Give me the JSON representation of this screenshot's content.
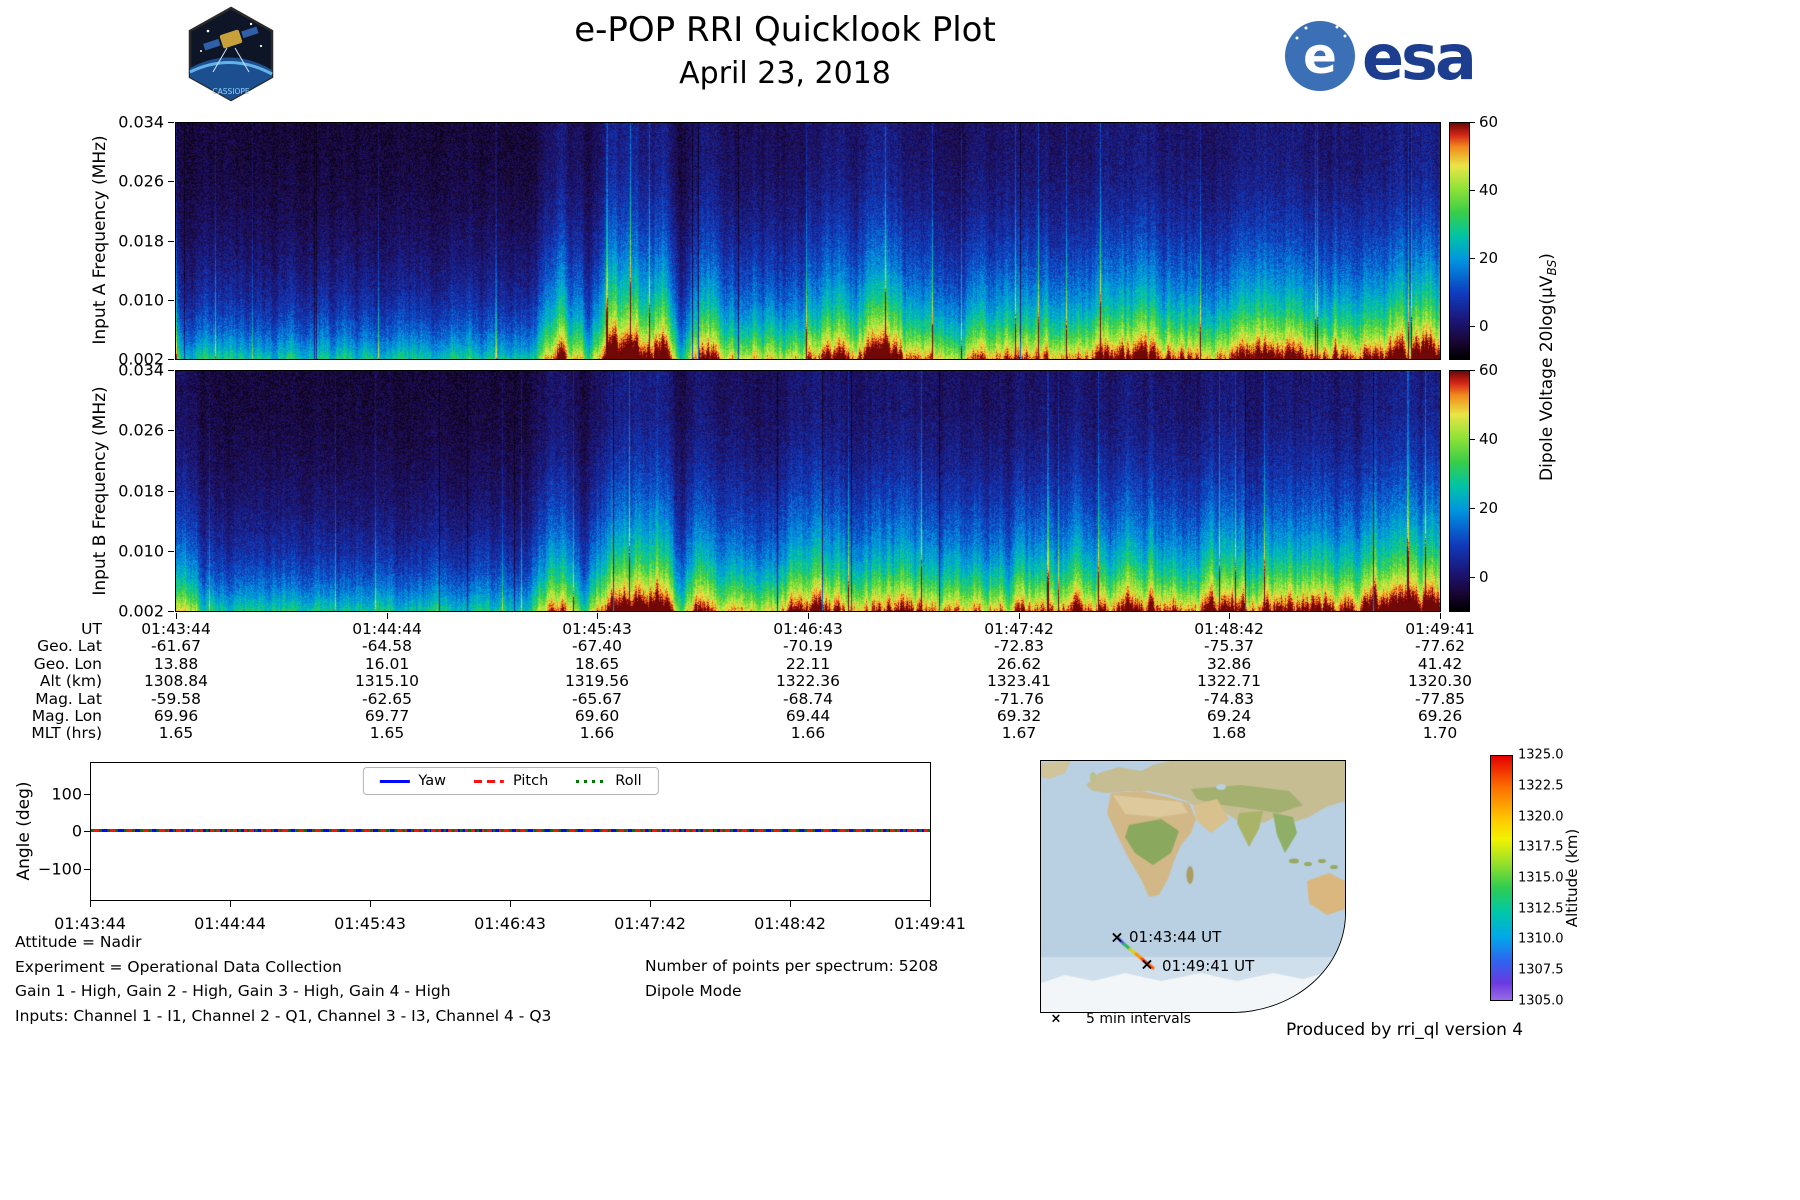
{
  "header": {
    "title": "e-POP RRI Quicklook Plot",
    "date": "April 23, 2018",
    "esa_logo_text": "esa",
    "esa_logo_e": "e",
    "patch_title": "CASSIOPE"
  },
  "spectrograms": {
    "ytick_labels": [
      "0.034",
      "0.026",
      "0.018",
      "0.010",
      "0.002"
    ],
    "panel_a_ylabel": "Input A Frequency (MHz)",
    "panel_b_ylabel": "Input B Frequency (MHz)",
    "colorbar": {
      "tick_labels": [
        "60",
        "40",
        "20",
        "0"
      ],
      "label_prefix": "Dipole Voltage 20log(μV",
      "label_sub": "BS",
      "label_suffix": ")"
    }
  },
  "ephemeris": {
    "row_labels": [
      "UT",
      "Geo. Lat",
      "Geo. Lon",
      "Alt (km)",
      "Mag. Lat",
      "Mag. Lon",
      "MLT (hrs)"
    ],
    "columns": [
      [
        "01:43:44",
        "-61.67",
        "13.88",
        "1308.84",
        "-59.58",
        "69.96",
        "1.65"
      ],
      [
        "01:44:44",
        "-64.58",
        "16.01",
        "1315.10",
        "-62.65",
        "69.77",
        "1.65"
      ],
      [
        "01:45:43",
        "-67.40",
        "18.65",
        "1319.56",
        "-65.67",
        "69.60",
        "1.66"
      ],
      [
        "01:46:43",
        "-70.19",
        "22.11",
        "1322.36",
        "-68.74",
        "69.44",
        "1.66"
      ],
      [
        "01:47:42",
        "-72.83",
        "26.62",
        "1323.41",
        "-71.76",
        "69.32",
        "1.67"
      ],
      [
        "01:48:42",
        "-75.37",
        "32.86",
        "1322.71",
        "-74.83",
        "69.24",
        "1.68"
      ],
      [
        "01:49:41",
        "-77.62",
        "41.42",
        "1320.30",
        "-77.85",
        "69.26",
        "1.70"
      ]
    ]
  },
  "angle_plot": {
    "ylabel": "Angle (deg)",
    "ytick_labels": [
      "100",
      "0",
      "−100"
    ],
    "xtick_labels": [
      "01:43:44",
      "01:44:44",
      "01:45:43",
      "01:46:43",
      "01:47:42",
      "01:48:42",
      "01:49:41"
    ],
    "legend": [
      "Yaw",
      "Pitch",
      "Roll"
    ]
  },
  "footer": {
    "lines": [
      "Attitude = Nadir",
      "Experiment = Operational Data Collection",
      "Gain 1 - High, Gain 2 - High, Gain 3 - High, Gain 4 - High",
      "Inputs: Channel 1 - I1, Channel 2 - Q1, Channel 3 - I3, Channel 4 - Q3"
    ],
    "center_lines": [
      "Number of points per spectrum: 5208",
      "Dipole Mode"
    ],
    "produced_by": "Produced by rri_ql version 4"
  },
  "map": {
    "marker_glyph": "×",
    "start_label": "01:43:44 UT",
    "end_label": "01:49:41 UT",
    "intervals_legend": "5 min intervals",
    "colorbar": {
      "label": "Altitude (km)",
      "tick_labels": [
        "1325.0",
        "1322.5",
        "1320.0",
        "1317.5",
        "1315.0",
        "1312.5",
        "1310.0",
        "1307.5",
        "1305.0"
      ]
    }
  },
  "chart_data": [
    {
      "type": "heatmap",
      "id": "input_a_spectrogram",
      "ylabel": "Input A Frequency (MHz)",
      "ylim_mhz": [
        0.002,
        0.034
      ],
      "yticks_mhz": [
        0.034,
        0.026,
        0.018,
        0.01,
        0.002
      ],
      "xticks_ut": [
        "01:43:44",
        "01:44:44",
        "01:45:43",
        "01:46:43",
        "01:47:42",
        "01:48:42",
        "01:49:41"
      ],
      "value_label": "Dipole Voltage 20log(μV_BS)",
      "value_range": [
        -10,
        60
      ],
      "colorbar_ticks": [
        60,
        40,
        20,
        0
      ],
      "time_envelope": [
        [
          0,
          0.55
        ],
        [
          0.08,
          0.5
        ],
        [
          0.2,
          0.52
        ],
        [
          0.28,
          0.5
        ],
        [
          0.305,
          1.25
        ],
        [
          0.325,
          0.6
        ],
        [
          0.345,
          1.3
        ],
        [
          0.365,
          1.25
        ],
        [
          0.385,
          1.35
        ],
        [
          0.4,
          0.55
        ],
        [
          0.415,
          1.2
        ],
        [
          0.45,
          0.75
        ],
        [
          0.5,
          0.95
        ],
        [
          0.57,
          1.15
        ],
        [
          0.61,
          0.8
        ],
        [
          0.66,
          1.05
        ],
        [
          0.7,
          0.9
        ],
        [
          0.76,
          1.15
        ],
        [
          0.81,
          0.95
        ],
        [
          0.86,
          1.2
        ],
        [
          0.9,
          1.0
        ],
        [
          0.95,
          1.2
        ],
        [
          1,
          1.35
        ]
      ]
    },
    {
      "type": "heatmap",
      "id": "input_b_spectrogram",
      "ylabel": "Input B Frequency (MHz)",
      "ylim_mhz": [
        0.002,
        0.034
      ],
      "yticks_mhz": [
        0.034,
        0.026,
        0.018,
        0.01,
        0.002
      ],
      "xticks_ut": [
        "01:43:44",
        "01:44:44",
        "01:45:43",
        "01:46:43",
        "01:47:42",
        "01:48:42",
        "01:49:41"
      ],
      "value_label": "Dipole Voltage 20log(μV_BS)",
      "value_range": [
        -10,
        60
      ],
      "colorbar_ticks": [
        60,
        40,
        20,
        0
      ],
      "time_envelope": [
        [
          0,
          0.8
        ],
        [
          0.03,
          0.55
        ],
        [
          0.08,
          0.5
        ],
        [
          0.2,
          0.5
        ],
        [
          0.28,
          0.52
        ],
        [
          0.305,
          1.2
        ],
        [
          0.325,
          0.6
        ],
        [
          0.345,
          1.3
        ],
        [
          0.365,
          1.25
        ],
        [
          0.385,
          1.3
        ],
        [
          0.4,
          0.55
        ],
        [
          0.415,
          1.15
        ],
        [
          0.45,
          0.8
        ],
        [
          0.5,
          1.0
        ],
        [
          0.57,
          1.1
        ],
        [
          0.61,
          0.85
        ],
        [
          0.66,
          1.05
        ],
        [
          0.7,
          0.95
        ],
        [
          0.76,
          1.1
        ],
        [
          0.81,
          1.0
        ],
        [
          0.86,
          1.15
        ],
        [
          0.9,
          1.05
        ],
        [
          0.95,
          1.2
        ],
        [
          1,
          1.3
        ]
      ]
    },
    {
      "type": "line",
      "id": "attitude_angles",
      "ylabel": "Angle (deg)",
      "ylim": [
        -185,
        185
      ],
      "yticks": [
        100,
        0,
        -100
      ],
      "x": [
        "01:43:44",
        "01:44:44",
        "01:45:43",
        "01:46:43",
        "01:47:42",
        "01:48:42",
        "01:49:41"
      ],
      "grid": false,
      "legend_position": "upper center",
      "series": [
        {
          "name": "Yaw",
          "color": "#0000ff",
          "style": "solid",
          "values": [
            0,
            0,
            0,
            0,
            0,
            0,
            0
          ]
        },
        {
          "name": "Pitch",
          "color": "#ff0000",
          "style": "dashed",
          "values": [
            0,
            0,
            0,
            0,
            0,
            0,
            0
          ]
        },
        {
          "name": "Roll",
          "color": "#008000",
          "style": "dotted",
          "values": [
            0,
            0,
            0,
            0,
            0,
            0,
            0
          ]
        }
      ]
    },
    {
      "type": "table",
      "id": "ephemeris_table",
      "row_labels": [
        "UT",
        "Geo. Lat",
        "Geo. Lon",
        "Alt (km)",
        "Mag. Lat",
        "Mag. Lon",
        "MLT (hrs)"
      ],
      "ut": [
        "01:43:44",
        "01:44:44",
        "01:45:43",
        "01:46:43",
        "01:47:42",
        "01:48:42",
        "01:49:41"
      ],
      "geo_lat": [
        -61.67,
        -64.58,
        -67.4,
        -70.19,
        -72.83,
        -75.37,
        -77.62
      ],
      "geo_lon": [
        13.88,
        16.01,
        18.65,
        22.11,
        26.62,
        32.86,
        41.42
      ],
      "alt_km": [
        1308.84,
        1315.1,
        1319.56,
        1322.36,
        1323.41,
        1322.71,
        1320.3
      ],
      "mag_lat": [
        -59.58,
        -62.65,
        -65.67,
        -68.74,
        -71.76,
        -74.83,
        -77.85
      ],
      "mag_lon": [
        69.96,
        69.77,
        69.6,
        69.44,
        69.32,
        69.24,
        69.26
      ],
      "mlt_hrs": [
        1.65,
        1.65,
        1.66,
        1.66,
        1.67,
        1.68,
        1.7
      ]
    },
    {
      "type": "scatter",
      "id": "ground_track_map",
      "marker": "x",
      "marker_note": "5 min intervals",
      "points": [
        {
          "ut": "01:43:44",
          "lat": -61.67,
          "lon": 13.88,
          "alt_km": 1308.84
        },
        {
          "ut": "01:44:44",
          "lat": -64.58,
          "lon": 16.01,
          "alt_km": 1315.1
        },
        {
          "ut": "01:45:43",
          "lat": -67.4,
          "lon": 18.65,
          "alt_km": 1319.56
        },
        {
          "ut": "01:46:43",
          "lat": -70.19,
          "lon": 22.11,
          "alt_km": 1322.36
        },
        {
          "ut": "01:47:42",
          "lat": -72.83,
          "lon": 26.62,
          "alt_km": 1323.41
        },
        {
          "ut": "01:48:42",
          "lat": -75.37,
          "lon": 32.86,
          "alt_km": 1322.71
        },
        {
          "ut": "01:49:41",
          "lat": -77.62,
          "lon": 41.42,
          "alt_km": 1320.3
        }
      ],
      "colorbar": {
        "label": "Altitude (km)",
        "range": [
          1305.0,
          1325.0
        ],
        "ticks": [
          1325.0,
          1322.5,
          1320.0,
          1317.5,
          1315.0,
          1312.5,
          1310.0,
          1307.5,
          1305.0
        ]
      }
    }
  ]
}
